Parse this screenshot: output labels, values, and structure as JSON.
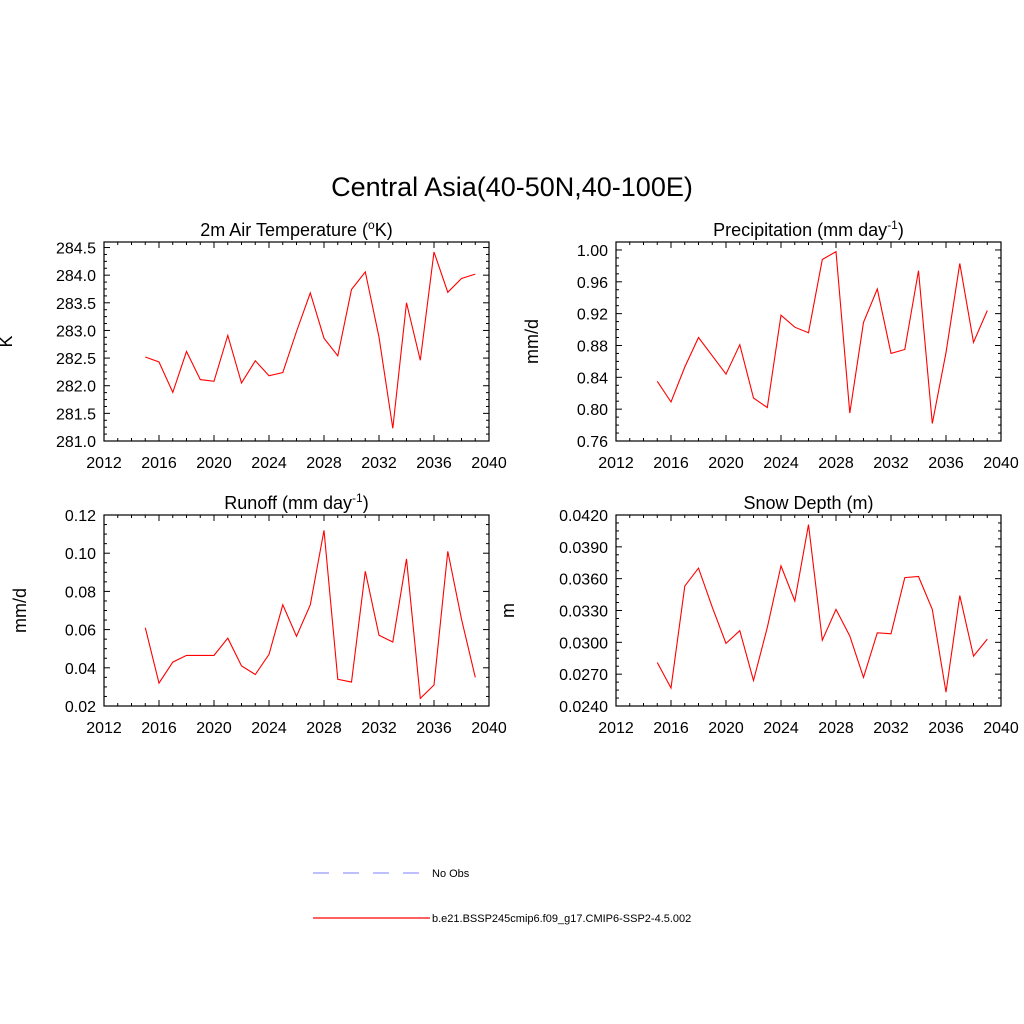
{
  "figure": {
    "title": "Central Asia(40-50N,40-100E)"
  },
  "legend": {
    "obs_label": "No Obs",
    "obs_color": "#9999ff",
    "model_label": "b.e21.BSSP245cmip6.f09_g17.CMIP6-SSP2-4.5.002",
    "model_color": "#ff0000"
  },
  "chart_data": [
    {
      "type": "line",
      "title": "2m Air Temperature (",
      "title_sup": "o",
      "title_suffix": "K)",
      "ylabel": "K",
      "xlim": [
        2012,
        2040
      ],
      "xticks": [
        "2012",
        "2016",
        "2020",
        "2024",
        "2028",
        "2032",
        "2036",
        "2040"
      ],
      "ylim": [
        281.0,
        284.6
      ],
      "yticks": [
        "281.0",
        "281.5",
        "282.0",
        "282.5",
        "283.0",
        "283.5",
        "284.0",
        "284.5"
      ],
      "x": [
        2015,
        2016,
        2017,
        2018,
        2019,
        2020,
        2021,
        2022,
        2023,
        2024,
        2025,
        2026,
        2027,
        2028,
        2029,
        2030,
        2031,
        2032,
        2033,
        2034,
        2035,
        2036,
        2037,
        2038,
        2039
      ],
      "series": [
        {
          "name": "b.e21.BSSP245cmip6.f09_g17.CMIP6-SSP2-4.5.002",
          "values": [
            282.52,
            282.43,
            281.88,
            282.62,
            282.11,
            282.08,
            282.91,
            282.05,
            282.45,
            282.18,
            282.24,
            282.98,
            283.68,
            282.86,
            282.54,
            283.74,
            284.06,
            282.88,
            281.23,
            283.5,
            282.46,
            284.42,
            283.69,
            283.94,
            284.02
          ]
        }
      ]
    },
    {
      "type": "line",
      "title": "Precipitation (mm day",
      "title_sup": "-1",
      "title_suffix": ")",
      "ylabel": "mm/d",
      "xlim": [
        2012,
        2040
      ],
      "xticks": [
        "2012",
        "2016",
        "2020",
        "2024",
        "2028",
        "2032",
        "2036",
        "2040"
      ],
      "ylim": [
        0.76,
        1.01
      ],
      "yticks": [
        "0.76",
        "0.80",
        "0.84",
        "0.88",
        "0.92",
        "0.96",
        "1.00"
      ],
      "x": [
        2015,
        2016,
        2017,
        2018,
        2019,
        2020,
        2021,
        2022,
        2023,
        2024,
        2025,
        2026,
        2027,
        2028,
        2029,
        2030,
        2031,
        2032,
        2033,
        2034,
        2035,
        2036,
        2037,
        2038,
        2039
      ],
      "series": [
        {
          "name": "b.e21.BSSP245cmip6.f09_g17.CMIP6-SSP2-4.5.002",
          "values": [
            0.835,
            0.809,
            0.853,
            0.89,
            0.867,
            0.844,
            0.881,
            0.814,
            0.802,
            0.918,
            0.903,
            0.896,
            0.988,
            0.998,
            0.795,
            0.909,
            0.951,
            0.87,
            0.875,
            0.974,
            0.782,
            0.871,
            0.983,
            0.884,
            0.924
          ]
        }
      ]
    },
    {
      "type": "line",
      "title": "Runoff (mm day",
      "title_sup": "-1",
      "title_suffix": ")",
      "ylabel": "mm/d",
      "xlim": [
        2012,
        2040
      ],
      "xticks": [
        "2012",
        "2016",
        "2020",
        "2024",
        "2028",
        "2032",
        "2036",
        "2040"
      ],
      "ylim": [
        0.02,
        0.12
      ],
      "yticks": [
        "0.02",
        "0.04",
        "0.06",
        "0.08",
        "0.10",
        "0.12"
      ],
      "x": [
        2015,
        2016,
        2017,
        2018,
        2019,
        2020,
        2021,
        2022,
        2023,
        2024,
        2025,
        2026,
        2027,
        2028,
        2029,
        2030,
        2031,
        2032,
        2033,
        2034,
        2035,
        2036,
        2037,
        2038,
        2039
      ],
      "series": [
        {
          "name": "b.e21.BSSP245cmip6.f09_g17.CMIP6-SSP2-4.5.002",
          "values": [
            0.061,
            0.032,
            0.043,
            0.0465,
            0.0465,
            0.0465,
            0.0555,
            0.041,
            0.0365,
            0.047,
            0.073,
            0.0565,
            0.073,
            0.112,
            0.034,
            0.0325,
            0.0905,
            0.057,
            0.0535,
            0.097,
            0.024,
            0.031,
            0.101,
            0.0655,
            0.035
          ]
        }
      ]
    },
    {
      "type": "line",
      "title": "Snow Depth (m)",
      "title_sup": "",
      "title_suffix": "",
      "ylabel": "m",
      "xlim": [
        2012,
        2040
      ],
      "xticks": [
        "2012",
        "2016",
        "2020",
        "2024",
        "2028",
        "2032",
        "2036",
        "2040"
      ],
      "ylim": [
        0.024,
        0.042
      ],
      "yticks": [
        "0.0240",
        "0.0270",
        "0.0300",
        "0.0330",
        "0.0360",
        "0.0390",
        "0.0420"
      ],
      "x": [
        2015,
        2016,
        2017,
        2018,
        2019,
        2020,
        2021,
        2022,
        2023,
        2024,
        2025,
        2026,
        2027,
        2028,
        2029,
        2030,
        2031,
        2032,
        2033,
        2034,
        2035,
        2036,
        2037,
        2038,
        2039
      ],
      "series": [
        {
          "name": "b.e21.BSSP245cmip6.f09_g17.CMIP6-SSP2-4.5.002",
          "values": [
            0.0281,
            0.0257,
            0.0353,
            0.037,
            0.0333,
            0.0299,
            0.0311,
            0.0264,
            0.0314,
            0.0372,
            0.0339,
            0.0411,
            0.0302,
            0.0331,
            0.0306,
            0.0267,
            0.0309,
            0.0308,
            0.0361,
            0.0362,
            0.0331,
            0.0253,
            0.0344,
            0.0287,
            0.0303
          ]
        }
      ]
    }
  ]
}
